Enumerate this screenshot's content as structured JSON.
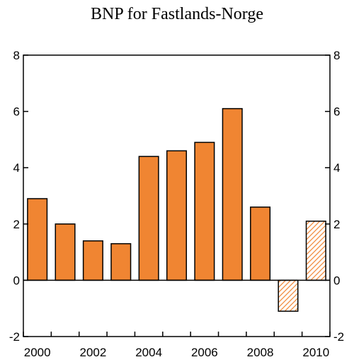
{
  "chart_data": {
    "type": "bar",
    "title": "BNP for Fastlands-Norge",
    "xlabel": "",
    "ylabel": "",
    "categories": [
      "2000",
      "2001",
      "2002",
      "2003",
      "2004",
      "2005",
      "2006",
      "2007",
      "2008",
      "2009",
      "2010"
    ],
    "values": [
      2.9,
      2.0,
      1.4,
      1.3,
      4.4,
      4.6,
      4.9,
      6.1,
      2.6,
      -1.1,
      2.1
    ],
    "forecast": [
      false,
      false,
      false,
      false,
      false,
      false,
      false,
      false,
      false,
      true,
      true
    ],
    "x_tick_labels": [
      "2000",
      "2002",
      "2004",
      "2006",
      "2008",
      "2010"
    ],
    "y_ticks": [
      "-2",
      "0",
      "2",
      "4",
      "6",
      "8"
    ],
    "ylim": [
      -2,
      8
    ],
    "grid": false,
    "legend": "none",
    "colors": {
      "bar_fill": "#F08532",
      "bar_stroke": "#000000",
      "forecast_hatch": "#F08532"
    }
  }
}
